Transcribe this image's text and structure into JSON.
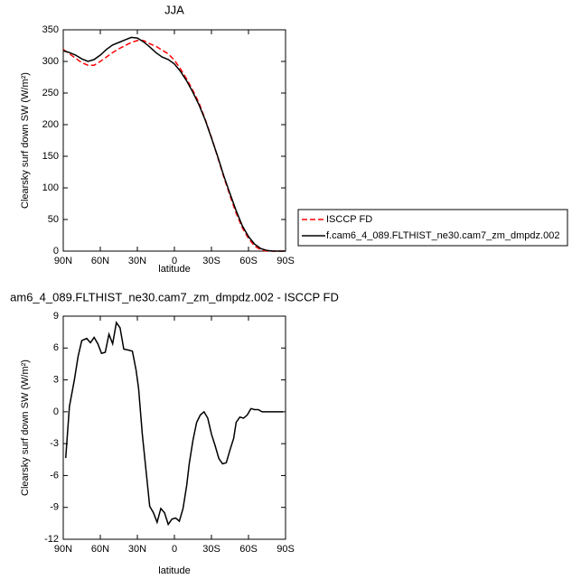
{
  "chart_data": [
    {
      "type": "line",
      "title": "JJA",
      "xlabel": "latitude",
      "ylabel": "Clearsky surf down SW (W/m²)",
      "x": [
        90,
        85,
        80,
        75,
        70,
        65,
        60,
        55,
        50,
        45,
        40,
        35,
        30,
        25,
        20,
        15,
        10,
        5,
        0,
        -5,
        -10,
        -15,
        -20,
        -25,
        -30,
        -35,
        -40,
        -45,
        -50,
        -55,
        -60,
        -65,
        -70,
        -75,
        -80,
        -85,
        -90
      ],
      "series": [
        {
          "name": "ISCCP FD",
          "color": "#ff0000",
          "dash": "dashed",
          "values": [
            319,
            312,
            305,
            298,
            294,
            294,
            300,
            307,
            314,
            320,
            325,
            330,
            333,
            333,
            328,
            324,
            318,
            312,
            302,
            288,
            272,
            254,
            234,
            208,
            180,
            149,
            117,
            88,
            60,
            37,
            20,
            8,
            2,
            0,
            0,
            0,
            0
          ]
        },
        {
          "name": "f.cam6_4_089.FLTHIST_ne30.cam7_zm_dmpdz.002",
          "color": "#000000",
          "dash": "solid",
          "values": [
            317,
            314,
            310,
            304,
            300,
            303,
            310,
            319,
            326,
            330,
            334,
            338,
            337,
            331,
            323,
            314,
            307,
            303,
            296,
            284,
            269,
            251,
            231,
            207,
            179,
            150,
            119,
            91,
            64,
            40,
            23,
            11,
            4,
            1,
            0,
            0,
            0
          ]
        }
      ],
      "xlim": [
        90,
        -90
      ],
      "xticks": [
        {
          "value": 90,
          "label": "90N"
        },
        {
          "value": 60,
          "label": "60N"
        },
        {
          "value": 30,
          "label": "30N"
        },
        0,
        {
          "value": -30,
          "label": "30S"
        },
        {
          "value": -60,
          "label": "60S"
        },
        {
          "value": -90,
          "label": "90S"
        }
      ],
      "ylim": [
        0,
        350
      ],
      "yticks": [
        0,
        50,
        100,
        150,
        200,
        250,
        300,
        350
      ],
      "legend": "outside-right"
    },
    {
      "type": "line",
      "title": "am6_4_089.FLTHIST_ne30.cam7_zm_dmpdz.002 - ISCCP FD",
      "xlabel": "latitude",
      "ylabel": "Clearsky surf down SW (W/m²)",
      "x": [
        88,
        85,
        81,
        78,
        75,
        71,
        68,
        65,
        62,
        59,
        56,
        53,
        50,
        47,
        44,
        41,
        37,
        34,
        31,
        29,
        26,
        23,
        20,
        17,
        14,
        11,
        8,
        5,
        2,
        -1,
        -4,
        -7,
        -10,
        -12,
        -15,
        -18,
        -21,
        -24,
        -27,
        -30,
        -33,
        -36,
        -39,
        -42,
        -45,
        -48,
        -50,
        -53,
        -56,
        -59,
        -62,
        -65,
        -68,
        -71,
        -74,
        -77,
        -88
      ],
      "series": [
        {
          "color": "#000000",
          "values": [
            -4.35,
            0.5,
            3,
            5.2,
            6.7,
            6.9,
            6.5,
            7,
            6.4,
            5.5,
            5.6,
            7.3,
            6.4,
            8.4,
            7.9,
            5.9,
            5.8,
            5.7,
            3.9,
            2.2,
            -2.1,
            -5.5,
            -8.9,
            -9.5,
            -10.4,
            -9.1,
            -9.5,
            -10.6,
            -10.1,
            -10,
            -10.3,
            -9.1,
            -6.9,
            -4.9,
            -2.7,
            -1,
            -0.3,
            0,
            -0.6,
            -2.1,
            -3.2,
            -4.4,
            -4.9,
            -4.8,
            -3.6,
            -2.5,
            -1,
            -0.5,
            -0.6,
            -0.3,
            0.3,
            0.2,
            0.2,
            0,
            0,
            0,
            0
          ]
        }
      ],
      "xlim": [
        90,
        -90
      ],
      "xticks": [
        {
          "value": 90,
          "label": "90N"
        },
        {
          "value": 60,
          "label": "60N"
        },
        {
          "value": 30,
          "label": "30N"
        },
        0,
        {
          "value": -30,
          "label": "30S"
        },
        {
          "value": -60,
          "label": "60S"
        },
        {
          "value": -90,
          "label": "90S"
        }
      ],
      "ylim": [
        -12,
        9
      ],
      "yticks": [
        -12,
        -9,
        -6,
        -3,
        0,
        3,
        6,
        9
      ]
    }
  ]
}
